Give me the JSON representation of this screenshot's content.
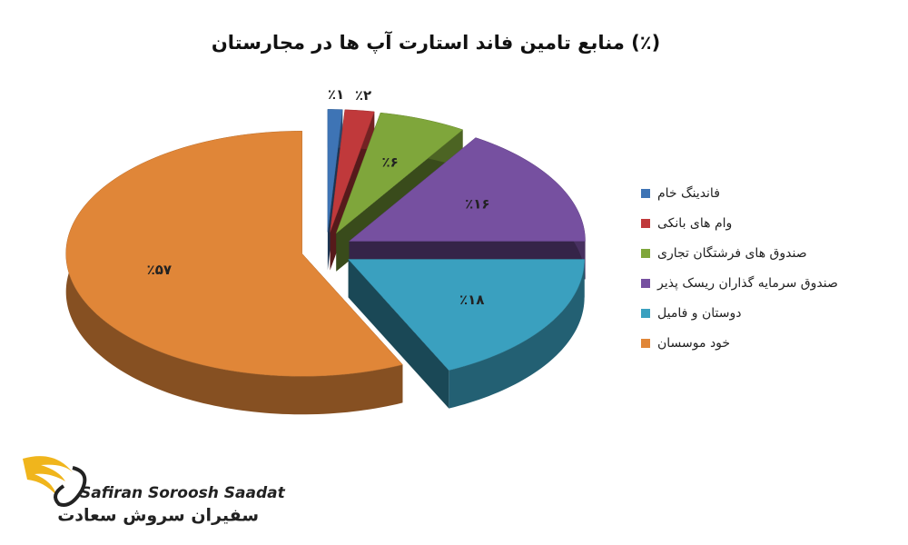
{
  "chart_data": {
    "type": "pie",
    "title": "منابع تامین فاند استارت آپ ها در مجارستان (٪)",
    "categories": [
      "فاندینگ خام",
      "وام های بانکی",
      "صندوق های فرشتگان تجاری",
      "صندوق سرمایه گذاران ریسک پذیر",
      "دوستان و فامیل",
      "خود موسسان"
    ],
    "values": [
      1,
      2,
      6,
      16,
      18,
      57
    ],
    "value_labels": [
      "٪۱",
      "٪۲",
      "٪۶",
      "٪۱۶",
      "٪۱۸",
      "٪۵۷"
    ],
    "colors": [
      "#3e74b5",
      "#c0393b",
      "#7fa63b",
      "#7650a0",
      "#3aa0bf",
      "#e08638"
    ],
    "legend": "right"
  },
  "logo": {
    "name": "Safiran Soroosh Saadat",
    "name_fa": "سفیران سروش سعادت"
  }
}
